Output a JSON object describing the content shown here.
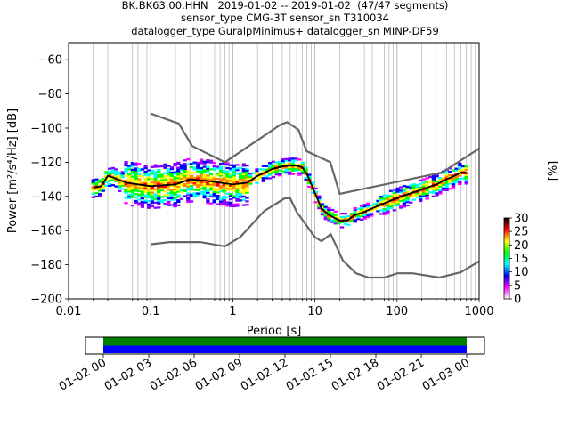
{
  "header": {
    "title_line1": "BK.BK63.00.HHN   2019-01-02 -- 2019-01-02  (47/47 segments)",
    "title_line2": "sensor_type CMG-3T sensor_sn T310034",
    "title_line3": "datalogger_type GuralpMinimus+ datalogger_sn MINP-DF59"
  },
  "chart_data": [
    {
      "type": "heatmap",
      "title": "",
      "xlabel": "Period [s]",
      "ylabel": "Power [m²/s⁴/Hz] [dB]",
      "x_scale": "log",
      "xlim": [
        0.01,
        1000
      ],
      "ylim": [
        -200,
        -50
      ],
      "x_ticks": [
        0.01,
        0.1,
        1,
        10,
        100,
        1000
      ],
      "x_tick_labels": [
        "0.01",
        "0.1",
        "1",
        "10",
        "100",
        "1000"
      ],
      "y_ticks": [
        -200,
        -180,
        -160,
        -140,
        -120,
        -100,
        -80,
        -60
      ],
      "y_tick_labels": [
        "−200",
        "−180",
        "−160",
        "−140",
        "−120",
        "−100",
        "−80",
        "−60"
      ],
      "grid": "x-major-and-minor",
      "colorbar": {
        "label": "[%]",
        "range": [
          0,
          30
        ],
        "ticks": [
          0,
          5,
          10,
          15,
          20,
          25,
          30
        ],
        "colormap": [
          "#ffffff",
          "#ff00ff",
          "#0000ff",
          "#00ffff",
          "#00ff00",
          "#ffff00",
          "#ff0000",
          "#000000"
        ]
      },
      "noise_models": {
        "color": "#666666",
        "nhnm": {
          "period": [
            0.1,
            0.22,
            0.32,
            0.8,
            3.8,
            4.6,
            6.3,
            7.9,
            15.4,
            20,
            354.8,
            1000
          ],
          "db": [
            -91.5,
            -97.4,
            -110.5,
            -120,
            -98,
            -96.5,
            -101,
            -113.5,
            -120,
            -138.5,
            -126,
            -112
          ]
        },
        "nlnm": {
          "period": [
            0.1,
            0.17,
            0.4,
            0.8,
            1.24,
            2.4,
            4.3,
            5,
            6,
            10,
            12,
            15.6,
            21.9,
            31.6,
            45,
            70,
            101,
            154,
            328,
            600,
            1000
          ],
          "db": [
            -168,
            -166.7,
            -166.7,
            -169.2,
            -163.7,
            -148.6,
            -141.1,
            -141.1,
            -149,
            -163.8,
            -166.2,
            -162.1,
            -177.5,
            -185,
            -187.5,
            -187.5,
            -185,
            -185,
            -187.5,
            -184.4,
            -178
          ]
        }
      },
      "median_curve": {
        "color": "#000000",
        "period": [
          0.02,
          0.025,
          0.03,
          0.035,
          0.05,
          0.1,
          0.2,
          0.3,
          0.5,
          1,
          1.5,
          2,
          3,
          4,
          5,
          6,
          7,
          8,
          10,
          12,
          15,
          20,
          25,
          30,
          40,
          50,
          70,
          100,
          150,
          200,
          300,
          400,
          500,
          600,
          700
        ],
        "db": [
          -135,
          -134,
          -128,
          -129,
          -132,
          -134,
          -133,
          -130,
          -131,
          -133,
          -132,
          -128,
          -124,
          -122.5,
          -122,
          -122,
          -123,
          -127,
          -138,
          -147,
          -151,
          -154,
          -154,
          -151,
          -149,
          -147,
          -144,
          -141,
          -138,
          -136,
          -133,
          -130,
          -128,
          -126,
          -126
        ]
      },
      "xaxis_sub": {
        "type": "timeline",
        "tick_labels": [
          "01-02 00",
          "01-02 03",
          "01-02 06",
          "01-02 09",
          "01-02 12",
          "01-02 15",
          "01-02 18",
          "01-02 21",
          "01-03 00"
        ],
        "bar_colors": [
          "#008000",
          "#0000ff"
        ]
      }
    }
  ]
}
